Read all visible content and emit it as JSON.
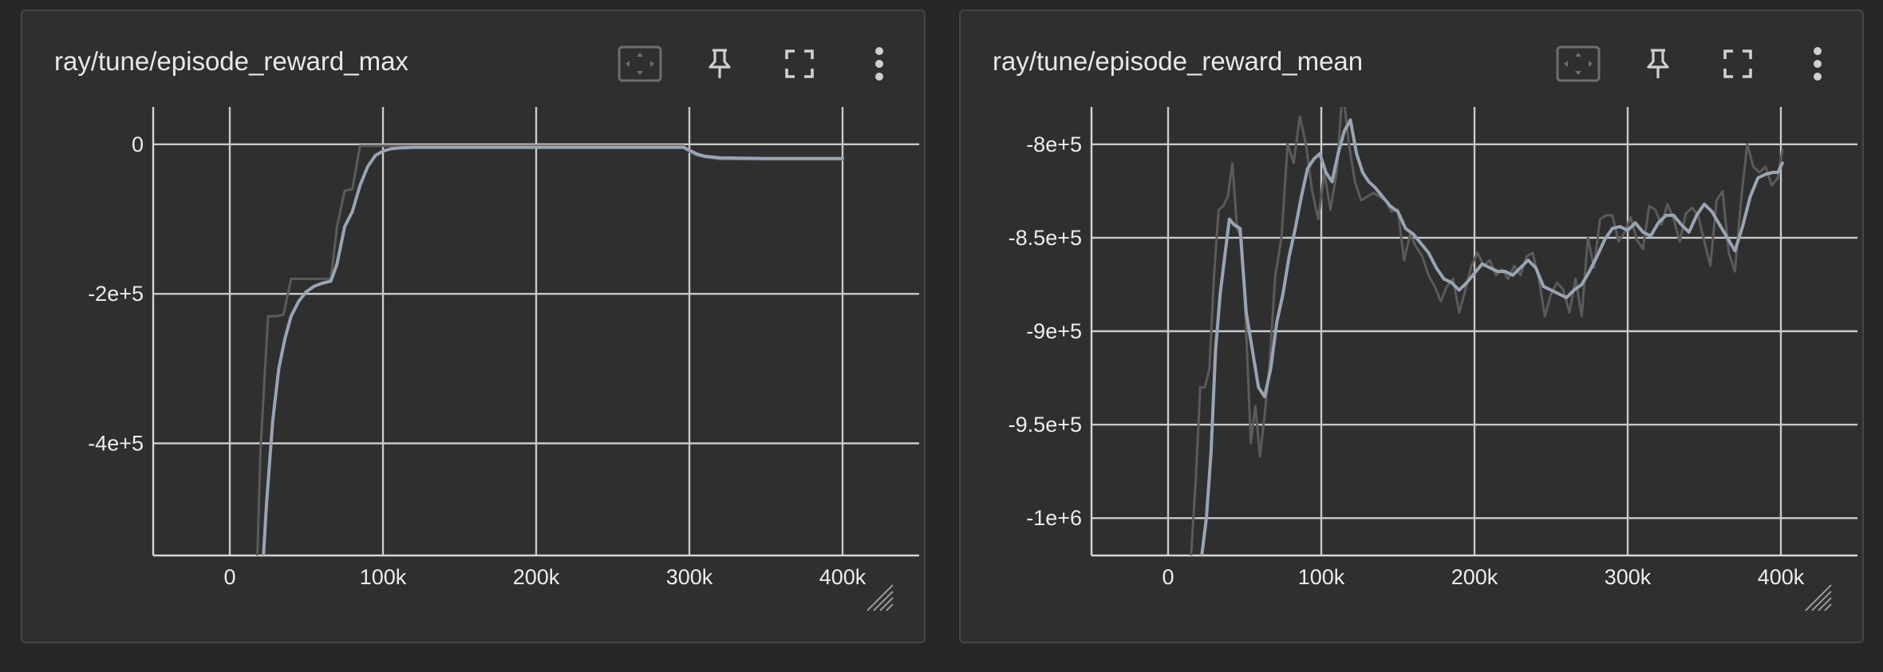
{
  "theme": {
    "grid": "#c9c9c9",
    "axis": "#d6d6d6",
    "tick_text": "#ededed",
    "raw_line": "#5b5b5b",
    "smooth_line": "#9aa4b3"
  },
  "cards": [
    {
      "title": "ray/tune/episode_reward_max",
      "toolbar": [
        "fit-domain-icon",
        "pin-icon",
        "fullscreen-icon",
        "more-vert-icon"
      ]
    },
    {
      "title": "ray/tune/episode_reward_mean",
      "toolbar": [
        "fit-domain-icon",
        "pin-icon",
        "fullscreen-icon",
        "more-vert-icon"
      ]
    }
  ],
  "chart_data": [
    {
      "type": "line",
      "title": "ray/tune/episode_reward_max",
      "xlabel": "",
      "ylabel": "",
      "xlim": [
        -50000,
        450000
      ],
      "ylim": [
        -550000,
        50000
      ],
      "x_ticks": [
        0,
        100000,
        200000,
        300000,
        400000
      ],
      "x_tick_labels": [
        "0",
        "100k",
        "200k",
        "300k",
        "400k"
      ],
      "y_ticks": [
        0,
        -200000,
        -400000
      ],
      "y_tick_labels": [
        "0",
        "-2e+5",
        "-4e+5"
      ],
      "grid": true,
      "series": [
        {
          "role": "raw",
          "x": [
            18000,
            20000,
            25000,
            30000,
            35000,
            40000,
            50000,
            55000,
            60000,
            66000,
            70000,
            75000,
            80000,
            85000,
            90000,
            95000,
            100000,
            120000,
            150000,
            200000,
            250000,
            296000,
            300000,
            305000,
            310000,
            320000,
            350000,
            400000
          ],
          "y": [
            -550000,
            -410000,
            -230000,
            -230000,
            -228000,
            -180000,
            -180000,
            -180000,
            -180000,
            -180000,
            -110000,
            -62000,
            -60000,
            -2000,
            -2000,
            -2000,
            -2000,
            -2000,
            -2000,
            -2000,
            -2000,
            -2000,
            -10000,
            -15000,
            -17000,
            -20000,
            -20000,
            -20000
          ]
        },
        {
          "role": "smoothed",
          "x": [
            22000,
            24000,
            28000,
            32000,
            36000,
            40000,
            45000,
            50000,
            55000,
            60000,
            66000,
            70000,
            75000,
            80000,
            85000,
            90000,
            95000,
            100000,
            105000,
            110000,
            120000,
            150000,
            200000,
            250000,
            296000,
            300000,
            305000,
            310000,
            320000,
            350000,
            400000
          ],
          "y": [
            -550000,
            -480000,
            -370000,
            -300000,
            -260000,
            -230000,
            -210000,
            -197000,
            -190000,
            -186000,
            -183000,
            -160000,
            -110000,
            -90000,
            -55000,
            -30000,
            -15000,
            -9000,
            -6000,
            -5000,
            -4000,
            -4000,
            -4000,
            -4000,
            -4000,
            -8000,
            -13000,
            -16000,
            -18000,
            -19000,
            -19000
          ]
        }
      ]
    },
    {
      "type": "line",
      "title": "ray/tune/episode_reward_mean",
      "xlabel": "",
      "ylabel": "",
      "xlim": [
        -50000,
        450000
      ],
      "ylim": [
        -1020000,
        -780000
      ],
      "x_ticks": [
        0,
        100000,
        200000,
        300000,
        400000
      ],
      "x_tick_labels": [
        "0",
        "100k",
        "200k",
        "300k",
        "400k"
      ],
      "y_ticks": [
        -800000,
        -850000,
        -900000,
        -950000,
        -1000000
      ],
      "y_tick_labels": [
        "-8e+5",
        "-8.5e+5",
        "-9e+5",
        "-9.5e+5",
        "-1e+6"
      ],
      "grid": true,
      "series": [
        {
          "role": "raw",
          "x": [
            15000,
            18000,
            21000,
            24000,
            27000,
            30000,
            33000,
            36000,
            39000,
            42000,
            45000,
            48000,
            51000,
            54000,
            57000,
            60000,
            63000,
            66000,
            70000,
            74000,
            78000,
            82000,
            86000,
            90000,
            94000,
            98000,
            102000,
            106000,
            110000,
            114000,
            118000,
            122000,
            126000,
            130000,
            134000,
            138000,
            142000,
            146000,
            150000,
            154000,
            158000,
            162000,
            166000,
            170000,
            174000,
            178000,
            182000,
            186000,
            190000,
            194000,
            198000,
            202000,
            206000,
            210000,
            214000,
            218000,
            222000,
            226000,
            230000,
            234000,
            238000,
            242000,
            246000,
            250000,
            254000,
            258000,
            262000,
            266000,
            270000,
            274000,
            278000,
            282000,
            286000,
            290000,
            294000,
            298000,
            302000,
            306000,
            310000,
            314000,
            318000,
            322000,
            326000,
            330000,
            334000,
            338000,
            342000,
            346000,
            350000,
            354000,
            358000,
            362000,
            366000,
            370000,
            374000,
            378000,
            382000,
            386000,
            390000,
            394000,
            398000,
            401000
          ],
          "y": [
            -1020000,
            -980000,
            -930000,
            -930000,
            -920000,
            -870000,
            -835000,
            -833000,
            -828000,
            -810000,
            -845000,
            -850000,
            -900000,
            -960000,
            -940000,
            -967000,
            -945000,
            -920000,
            -870000,
            -850000,
            -800000,
            -810000,
            -785000,
            -800000,
            -825000,
            -840000,
            -815000,
            -835000,
            -815000,
            -770000,
            -800000,
            -820000,
            -830000,
            -828000,
            -826000,
            -828000,
            -830000,
            -836000,
            -835000,
            -862000,
            -848000,
            -855000,
            -860000,
            -870000,
            -876000,
            -884000,
            -876000,
            -872000,
            -890000,
            -878000,
            -865000,
            -858000,
            -865000,
            -862000,
            -870000,
            -867000,
            -872000,
            -865000,
            -870000,
            -860000,
            -858000,
            -872000,
            -892000,
            -880000,
            -874000,
            -878000,
            -890000,
            -872000,
            -892000,
            -850000,
            -866000,
            -840000,
            -838000,
            -838000,
            -852000,
            -847000,
            -839000,
            -851000,
            -856000,
            -833000,
            -835000,
            -843000,
            -832000,
            -840000,
            -852000,
            -837000,
            -834000,
            -838000,
            -852000,
            -865000,
            -830000,
            -825000,
            -858000,
            -868000,
            -830000,
            -800000,
            -812000,
            -815000,
            -812000,
            -822000,
            -818000,
            -803000
          ]
        },
        {
          "role": "smoothed",
          "x": [
            22000,
            25000,
            28000,
            31000,
            34000,
            37000,
            40000,
            43000,
            47000,
            51000,
            55000,
            59000,
            63000,
            67000,
            71000,
            75000,
            79000,
            83000,
            87000,
            91000,
            95000,
            99000,
            103000,
            107000,
            111000,
            115000,
            119000,
            123000,
            127000,
            131000,
            135000,
            140000,
            145000,
            150000,
            155000,
            160000,
            165000,
            170000,
            175000,
            180000,
            185000,
            190000,
            195000,
            200000,
            205000,
            210000,
            215000,
            220000,
            225000,
            230000,
            235000,
            240000,
            245000,
            250000,
            255000,
            260000,
            265000,
            270000,
            275000,
            280000,
            285000,
            290000,
            295000,
            300000,
            305000,
            310000,
            315000,
            320000,
            325000,
            330000,
            335000,
            340000,
            345000,
            350000,
            355000,
            360000,
            365000,
            370000,
            375000,
            380000,
            385000,
            390000,
            395000,
            398000,
            401000
          ],
          "y": [
            -1020000,
            -1000000,
            -965000,
            -910000,
            -880000,
            -860000,
            -840000,
            -843000,
            -845000,
            -890000,
            -910000,
            -930000,
            -935000,
            -920000,
            -895000,
            -880000,
            -860000,
            -845000,
            -828000,
            -813000,
            -808000,
            -805000,
            -815000,
            -820000,
            -805000,
            -793000,
            -787000,
            -805000,
            -815000,
            -820000,
            -823000,
            -828000,
            -833000,
            -836000,
            -845000,
            -848000,
            -853000,
            -858000,
            -866000,
            -872000,
            -874000,
            -878000,
            -874000,
            -869000,
            -864000,
            -866000,
            -868000,
            -868000,
            -870000,
            -866000,
            -862000,
            -866000,
            -876000,
            -878000,
            -880000,
            -882000,
            -878000,
            -875000,
            -868000,
            -860000,
            -851000,
            -845000,
            -844000,
            -846000,
            -842000,
            -847000,
            -849000,
            -842000,
            -838000,
            -838000,
            -843000,
            -847000,
            -838000,
            -832000,
            -836000,
            -843000,
            -850000,
            -857000,
            -844000,
            -828000,
            -818000,
            -816000,
            -815000,
            -815000,
            -810000
          ]
        }
      ]
    }
  ]
}
